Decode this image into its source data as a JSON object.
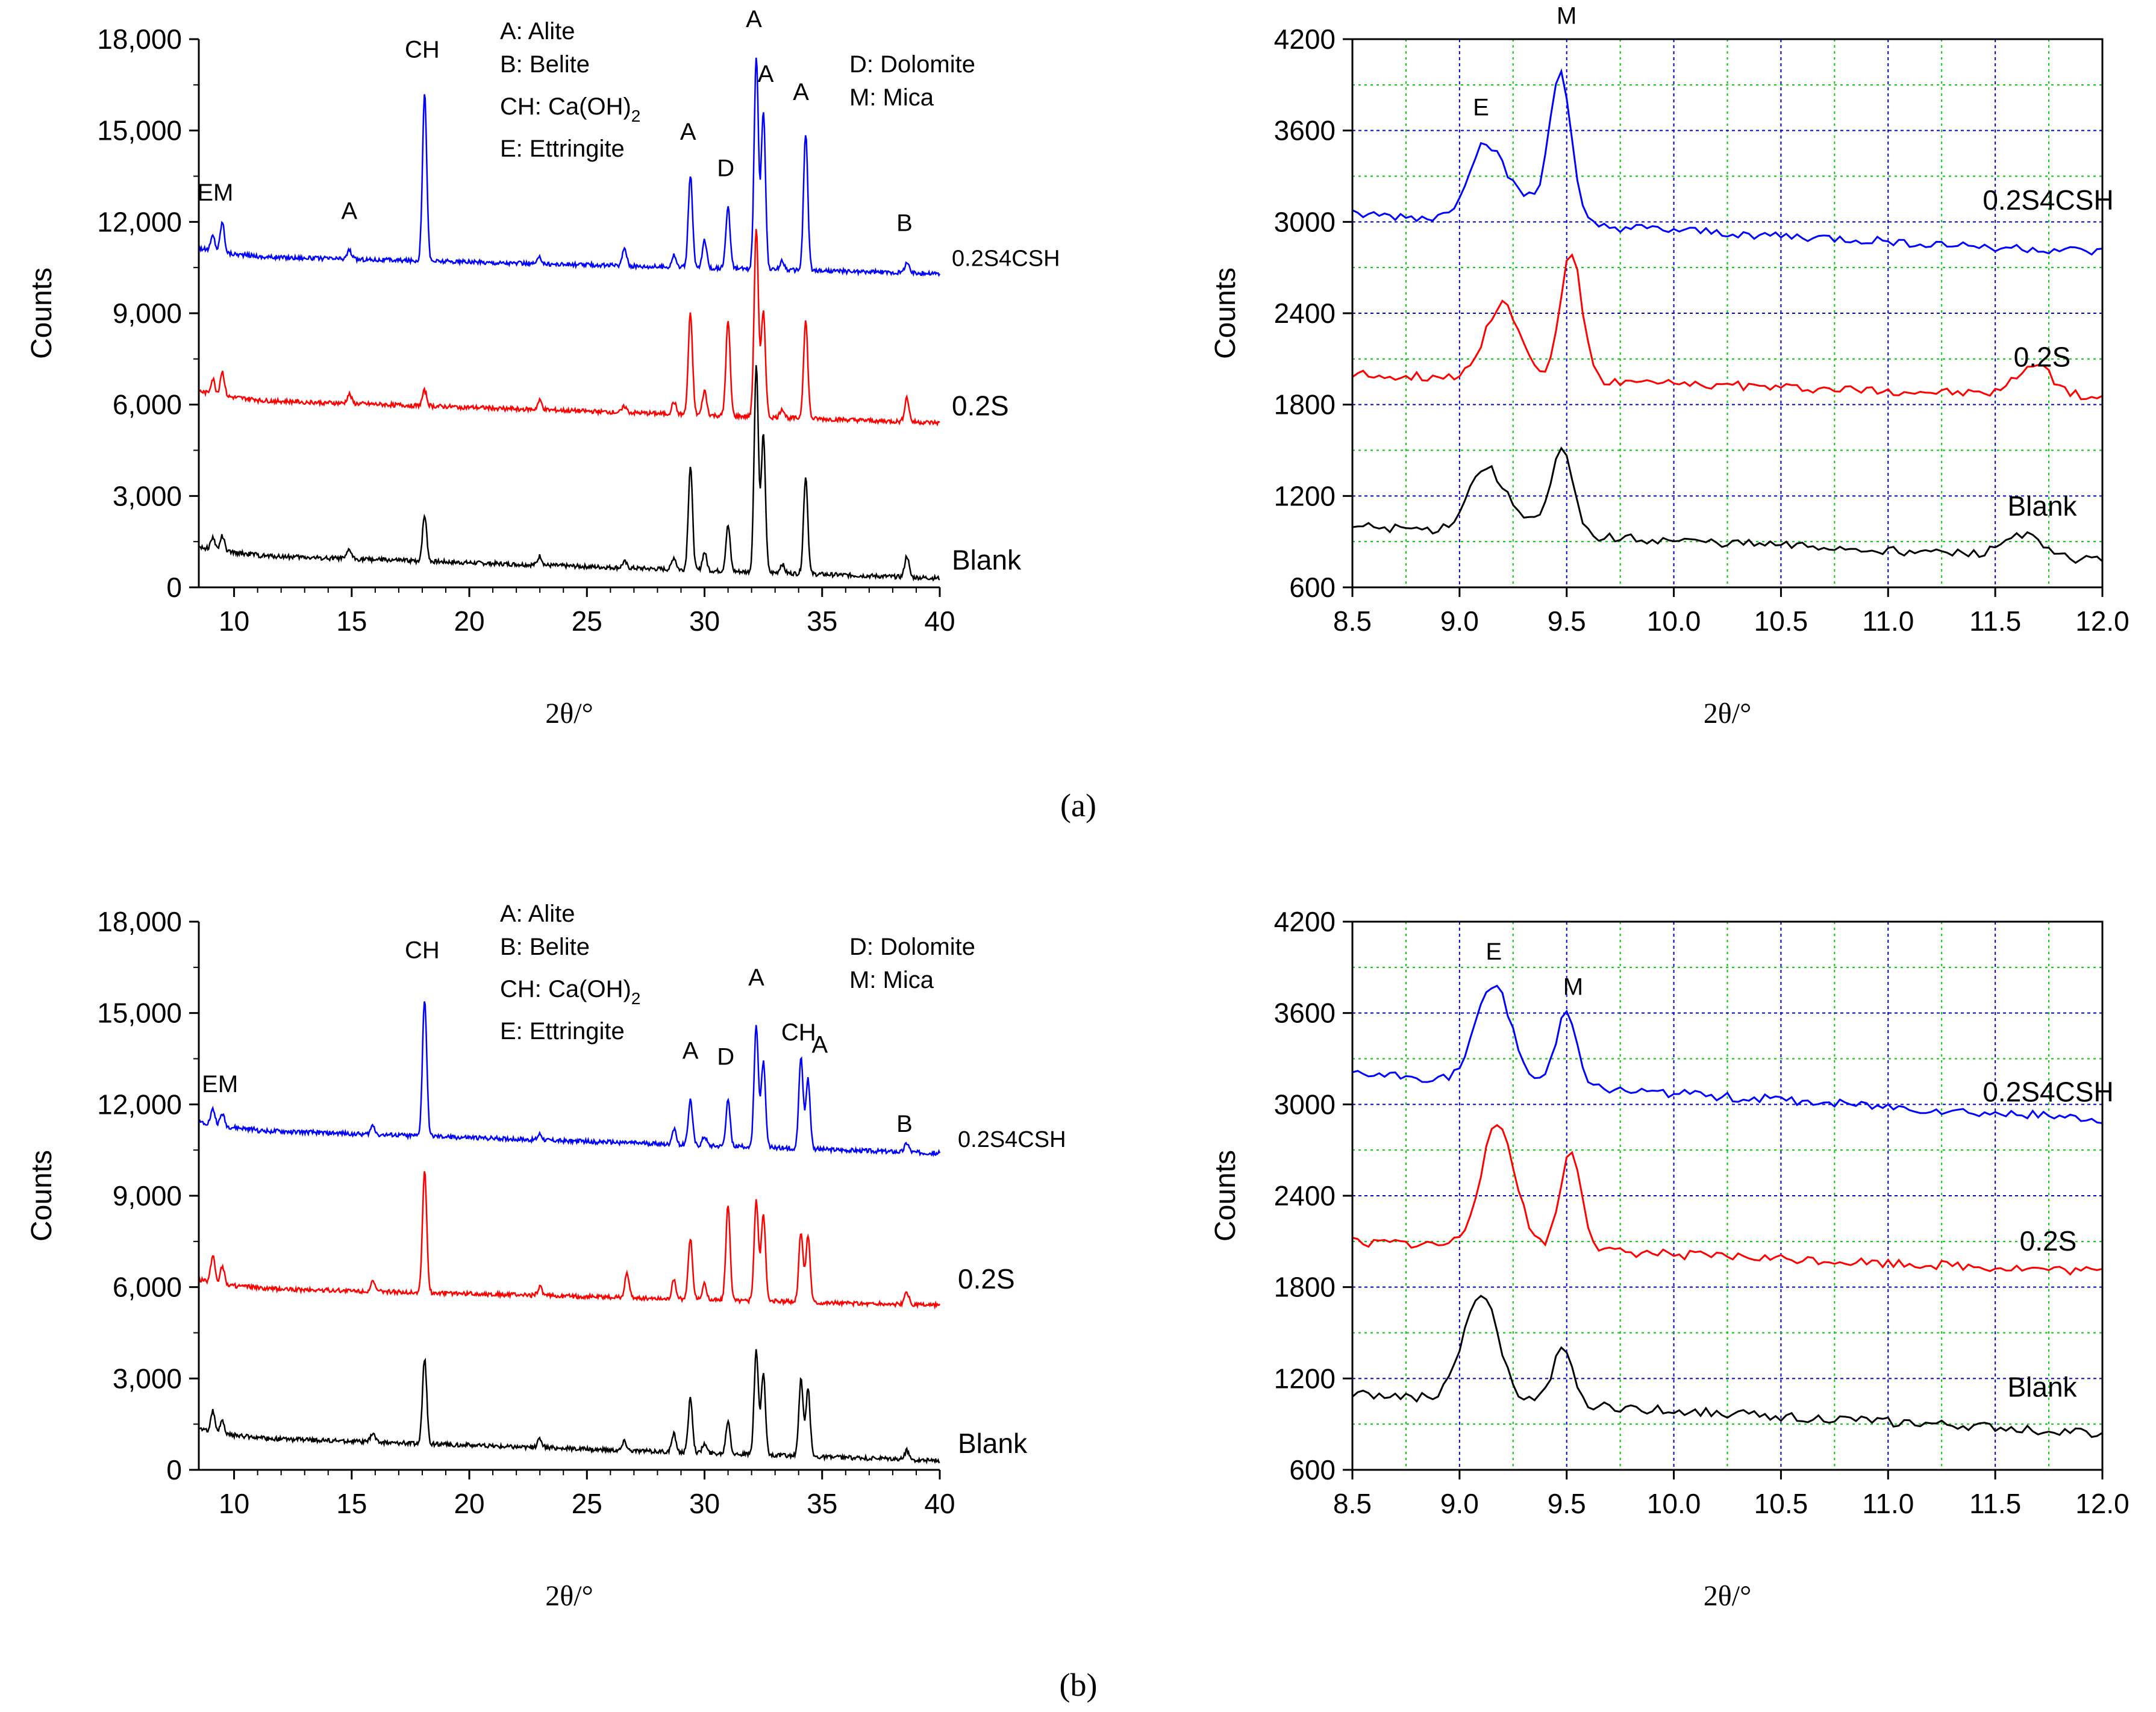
{
  "figure": {
    "caption_a": "(a)",
    "caption_b": "(b)"
  },
  "chart_data": [
    {
      "id": "a-left",
      "type": "line",
      "title": "",
      "xlabel": "2θ/°",
      "ylabel": "Counts",
      "xlim": [
        8.5,
        40
      ],
      "ylim": [
        0,
        18000
      ],
      "xticks": [
        10,
        15,
        20,
        25,
        30,
        35,
        40
      ],
      "xtick_labels": [
        "10",
        "15",
        "20",
        "25",
        "30",
        "35",
        "40"
      ],
      "yticks": [
        0,
        3000,
        6000,
        9000,
        12000,
        15000,
        18000
      ],
      "ytick_labels": [
        "0",
        "3,000",
        "6,000",
        "9,000",
        "12,000",
        "15,000",
        "18,000"
      ],
      "legend": [
        {
          "text": "A: Alite"
        },
        {
          "text": "B: Belite"
        },
        {
          "text": "CH: Ca(OH)",
          "sub": "2"
        },
        {
          "text": "E: Ettringite"
        },
        {
          "text": "D: Dolomite"
        },
        {
          "text": "M: Mica"
        }
      ],
      "series": [
        {
          "name": "0.2S4CSH",
          "color": "#0000ff",
          "base": 10900,
          "drift": -600,
          "peaks": [
            [
              9.1,
              500
            ],
            [
              9.5,
              1000
            ],
            [
              14.9,
              300
            ],
            [
              18.1,
              5500
            ],
            [
              23.0,
              200
            ],
            [
              26.6,
              600
            ],
            [
              28.7,
              400
            ],
            [
              29.4,
              3000
            ],
            [
              30.0,
              900
            ],
            [
              31.0,
              2000
            ],
            [
              32.2,
              7000
            ],
            [
              32.5,
              5200
            ],
            [
              33.3,
              300
            ],
            [
              34.3,
              4500
            ],
            [
              38.6,
              350
            ]
          ]
        },
        {
          "name": "0.2S",
          "color": "#ff0000",
          "base": 6200,
          "drift": -800,
          "peaks": [
            [
              9.1,
              500
            ],
            [
              9.5,
              800
            ],
            [
              14.9,
              300
            ],
            [
              18.1,
              500
            ],
            [
              23.0,
              300
            ],
            [
              26.6,
              200
            ],
            [
              28.7,
              400
            ],
            [
              29.4,
              3300
            ],
            [
              30.0,
              800
            ],
            [
              31.0,
              3100
            ],
            [
              32.2,
              6200
            ],
            [
              32.5,
              3500
            ],
            [
              33.3,
              300
            ],
            [
              34.3,
              3200
            ],
            [
              38.6,
              800
            ]
          ]
        },
        {
          "name": "Blank",
          "color": "#000000",
          "base": 1100,
          "drift": -800,
          "peaks": [
            [
              9.1,
              400
            ],
            [
              9.5,
              500
            ],
            [
              14.9,
              300
            ],
            [
              18.1,
              1500
            ],
            [
              23.0,
              300
            ],
            [
              26.6,
              200
            ],
            [
              28.7,
              400
            ],
            [
              29.4,
              3400
            ],
            [
              30.0,
              600
            ],
            [
              31.0,
              1500
            ],
            [
              32.2,
              6800
            ],
            [
              32.5,
              4500
            ],
            [
              33.3,
              300
            ],
            [
              34.3,
              3200
            ],
            [
              38.6,
              700
            ]
          ]
        }
      ],
      "series_labels": [
        "0.2S4CSH",
        "0.2S",
        "Blank"
      ],
      "annotations": [
        {
          "text": "EM",
          "x": 9.2,
          "y": 12700
        },
        {
          "text": "A",
          "x": 14.9,
          "y": 12100
        },
        {
          "text": "CH",
          "x": 18.0,
          "y": 17400
        },
        {
          "text": "A",
          "x": 29.3,
          "y": 14700
        },
        {
          "text": "D",
          "x": 30.9,
          "y": 13500
        },
        {
          "text": "A",
          "x": 32.1,
          "y": 18400
        },
        {
          "text": "A",
          "x": 32.6,
          "y": 16600
        },
        {
          "text": "A",
          "x": 34.1,
          "y": 16000
        },
        {
          "text": "B",
          "x": 38.5,
          "y": 11700
        }
      ]
    },
    {
      "id": "a-right",
      "type": "line",
      "title": "",
      "xlabel": "2θ/°",
      "ylabel": "Counts",
      "xlim": [
        8.5,
        12.0
      ],
      "ylim": [
        600,
        4200
      ],
      "xticks": [
        8.5,
        9.0,
        9.5,
        10.0,
        10.5,
        11.0,
        11.5,
        12.0
      ],
      "xtick_labels": [
        "8.5",
        "9.0",
        "9.5",
        "10.0",
        "10.5",
        "11.0",
        "11.5",
        "12.0"
      ],
      "yticks": [
        600,
        1200,
        1800,
        2400,
        3000,
        3600,
        4200
      ],
      "ytick_labels": [
        "600",
        "1200",
        "1800",
        "2400",
        "3000",
        "3600",
        "4200"
      ],
      "grid": true,
      "series": [
        {
          "name": "0.2S4CSH",
          "color": "#0000ff",
          "base": 3050,
          "drift": -250,
          "peaks": [
            [
              9.12,
              500
            ],
            [
              9.47,
              1000
            ],
            [
              9.3,
              150
            ]
          ]
        },
        {
          "name": "0.2S",
          "color": "#ff0000",
          "base": 2000,
          "drift": -150,
          "peaks": [
            [
              9.2,
              500
            ],
            [
              9.52,
              850
            ],
            [
              11.68,
              200
            ]
          ]
        },
        {
          "name": "Blank",
          "color": "#000000",
          "base": 1000,
          "drift": -220,
          "peaks": [
            [
              9.12,
              420
            ],
            [
              9.48,
              550
            ],
            [
              9.3,
              100
            ],
            [
              11.62,
              150
            ]
          ]
        }
      ],
      "series_labels": [
        "0.2S4CSH",
        "0.2S",
        "Blank"
      ],
      "annotations": [
        {
          "text": "E",
          "x": 9.1,
          "y": 3700
        },
        {
          "text": "M",
          "x": 9.5,
          "y": 4300
        }
      ]
    },
    {
      "id": "b-left",
      "type": "line",
      "title": "",
      "xlabel": "2θ/°",
      "ylabel": "Counts",
      "xlim": [
        8.5,
        40
      ],
      "ylim": [
        0,
        18000
      ],
      "xticks": [
        10,
        15,
        20,
        25,
        30,
        35,
        40
      ],
      "xtick_labels": [
        "10",
        "15",
        "20",
        "25",
        "30",
        "35",
        "40"
      ],
      "yticks": [
        0,
        3000,
        6000,
        9000,
        12000,
        15000,
        18000
      ],
      "ytick_labels": [
        "0",
        "3,000",
        "6,000",
        "9,000",
        "12,000",
        "15,000",
        "18,000"
      ],
      "legend": [
        {
          "text": "A: Alite"
        },
        {
          "text": "B: Belite"
        },
        {
          "text": "CH: Ca(OH)",
          "sub": "2"
        },
        {
          "text": "E: Ettringite"
        },
        {
          "text": "D: Dolomite"
        },
        {
          "text": "M: Mica"
        }
      ],
      "series": [
        {
          "name": "0.2S4CSH",
          "color": "#0000ff",
          "base": 11200,
          "drift": -800,
          "peaks": [
            [
              9.1,
              500
            ],
            [
              9.5,
              400
            ],
            [
              15.9,
              300
            ],
            [
              18.1,
              4500
            ],
            [
              23.0,
              200
            ],
            [
              28.7,
              500
            ],
            [
              29.4,
              1500
            ],
            [
              30.0,
              300
            ],
            [
              31.0,
              1500
            ],
            [
              32.2,
              4000
            ],
            [
              32.5,
              2800
            ],
            [
              34.1,
              3000
            ],
            [
              34.4,
              2300
            ],
            [
              38.6,
              300
            ]
          ]
        },
        {
          "name": "0.2S",
          "color": "#ff0000",
          "base": 6000,
          "drift": -600,
          "peaks": [
            [
              9.1,
              900
            ],
            [
              9.5,
              600
            ],
            [
              15.9,
              300
            ],
            [
              18.1,
              4000
            ],
            [
              23.0,
              300
            ],
            [
              26.7,
              800
            ],
            [
              28.7,
              600
            ],
            [
              29.4,
              2000
            ],
            [
              30.0,
              500
            ],
            [
              31.0,
              3100
            ],
            [
              32.2,
              3300
            ],
            [
              32.5,
              2900
            ],
            [
              34.1,
              2300
            ],
            [
              34.4,
              2200
            ],
            [
              38.6,
              400
            ]
          ]
        },
        {
          "name": "Blank",
          "color": "#000000",
          "base": 1100,
          "drift": -800,
          "peaks": [
            [
              9.1,
              700
            ],
            [
              9.5,
              400
            ],
            [
              15.9,
              300
            ],
            [
              18.1,
              2800
            ],
            [
              23.0,
              300
            ],
            [
              26.6,
              300
            ],
            [
              28.7,
              600
            ],
            [
              29.4,
              1800
            ],
            [
              30.0,
              300
            ],
            [
              31.0,
              1100
            ],
            [
              32.2,
              3400
            ],
            [
              32.5,
              2700
            ],
            [
              34.1,
              2500
            ],
            [
              34.4,
              2200
            ],
            [
              38.6,
              300
            ]
          ]
        }
      ],
      "series_labels": [
        "0.2S4CSH",
        "0.2S",
        "Blank"
      ],
      "annotations": [
        {
          "text": "EM",
          "x": 9.4,
          "y": 12400
        },
        {
          "text": "CH",
          "x": 18.0,
          "y": 16800
        },
        {
          "text": "A",
          "x": 29.4,
          "y": 13500
        },
        {
          "text": "D",
          "x": 30.9,
          "y": 13300
        },
        {
          "text": "A",
          "x": 32.2,
          "y": 15900
        },
        {
          "text": "CH",
          "x": 34.0,
          "y": 14100
        },
        {
          "text": "A",
          "x": 34.9,
          "y": 13700
        },
        {
          "text": "B",
          "x": 38.5,
          "y": 11100
        }
      ]
    },
    {
      "id": "b-right",
      "type": "line",
      "title": "",
      "xlabel": "2θ/°",
      "ylabel": "Counts",
      "xlim": [
        8.5,
        12.0
      ],
      "ylim": [
        600,
        4200
      ],
      "xticks": [
        8.5,
        9.0,
        9.5,
        10.0,
        10.5,
        11.0,
        11.5,
        12.0
      ],
      "xtick_labels": [
        "8.5",
        "9.0",
        "9.5",
        "10.0",
        "10.5",
        "11.0",
        "11.5",
        "12.0"
      ],
      "yticks": [
        600,
        1200,
        1800,
        2400,
        3000,
        3600,
        4200
      ],
      "ytick_labels": [
        "600",
        "1200",
        "1800",
        "2400",
        "3000",
        "3600",
        "4200"
      ],
      "grid": true,
      "series": [
        {
          "name": "0.2S4CSH",
          "color": "#0000ff",
          "base": 3200,
          "drift": -300,
          "peaks": [
            [
              9.16,
              650
            ],
            [
              9.5,
              500
            ]
          ]
        },
        {
          "name": "0.2S",
          "color": "#ff0000",
          "base": 2100,
          "drift": -200,
          "peaks": [
            [
              9.18,
              800
            ],
            [
              9.52,
              650
            ]
          ]
        },
        {
          "name": "Blank",
          "color": "#000000",
          "base": 1100,
          "drift": -260,
          "peaks": [
            [
              9.1,
              700
            ],
            [
              9.48,
              350
            ]
          ]
        }
      ],
      "series_labels": [
        "0.2S4CSH",
        "0.2S",
        "Blank"
      ],
      "annotations": [
        {
          "text": "E",
          "x": 9.16,
          "y": 3950
        },
        {
          "text": "M",
          "x": 9.53,
          "y": 3720
        }
      ]
    }
  ]
}
